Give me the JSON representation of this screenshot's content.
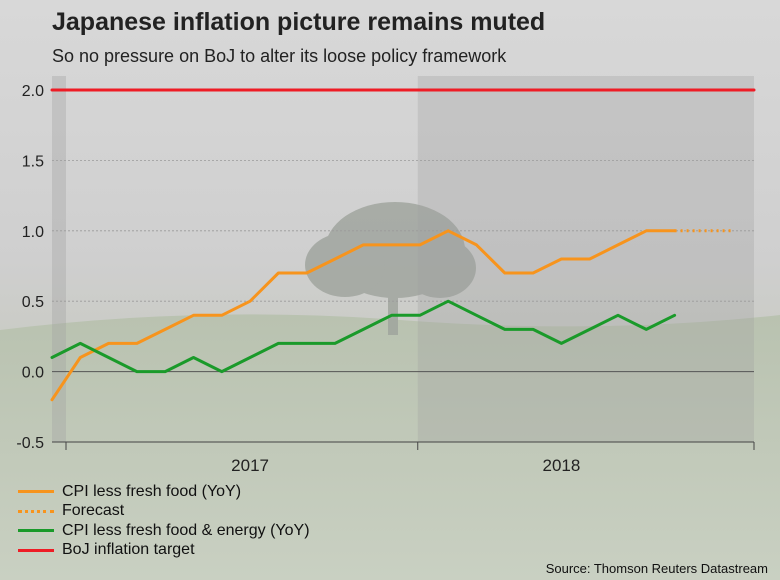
{
  "title": "Japanese inflation picture remains muted",
  "subtitle": "So no pressure on BoJ to alter its loose policy framework",
  "source": "Source: Thomson Reuters Datastream",
  "colors": {
    "core": "#f7941d",
    "corecore": "#1a9a2a",
    "target": "#ee1c25"
  },
  "legend": [
    {
      "label": "CPI less fresh food (YoY)",
      "style": "solid",
      "color": "#f7941d"
    },
    {
      "label": "Forecast",
      "style": "dotted",
      "color": "#f7941d"
    },
    {
      "label": "CPI less fresh food & energy (YoY)",
      "style": "solid",
      "color": "#1a9a2a"
    },
    {
      "label": "BoJ inflation target",
      "style": "solid",
      "color": "#ee1c25"
    }
  ],
  "chart_data": {
    "type": "line",
    "x": [
      "2016-12",
      "2017-01",
      "2017-02",
      "2017-03",
      "2017-04",
      "2017-05",
      "2017-06",
      "2017-07",
      "2017-08",
      "2017-09",
      "2017-10",
      "2017-11",
      "2017-12",
      "2018-01",
      "2018-02",
      "2018-03",
      "2018-04",
      "2018-05",
      "2018-06",
      "2018-07",
      "2018-08",
      "2018-09",
      "2018-10",
      "2018-11",
      "2018-12"
    ],
    "xticks": [
      {
        "label": "2017",
        "x": "2017-07"
      },
      {
        "label": "2018",
        "x": "2018-06"
      }
    ],
    "ylim": [
      -0.5,
      2.0
    ],
    "yticks": [
      "-0.5",
      "0.0",
      "0.5",
      "1.0",
      "1.5",
      "2.0"
    ],
    "series": [
      {
        "name": "CPI less fresh food (YoY)",
        "values": [
          -0.2,
          0.1,
          0.2,
          0.2,
          0.3,
          0.4,
          0.4,
          0.5,
          0.7,
          0.7,
          0.8,
          0.9,
          0.9,
          0.9,
          1.0,
          0.9,
          0.7,
          0.7,
          0.8,
          0.8,
          0.9,
          1.0,
          1.0,
          null,
          null
        ]
      },
      {
        "name": "Forecast",
        "values": [
          null,
          null,
          null,
          null,
          null,
          null,
          null,
          null,
          null,
          null,
          null,
          null,
          null,
          null,
          null,
          null,
          null,
          null,
          null,
          null,
          null,
          null,
          1.0,
          1.0,
          1.0
        ]
      },
      {
        "name": "CPI less fresh food & energy (YoY)",
        "values": [
          0.1,
          0.2,
          0.1,
          0.0,
          0.0,
          0.1,
          0.0,
          0.1,
          0.2,
          0.2,
          0.2,
          0.3,
          0.4,
          0.4,
          0.5,
          0.4,
          0.3,
          0.3,
          0.2,
          0.3,
          0.4,
          0.3,
          0.4,
          null,
          null
        ]
      },
      {
        "name": "BoJ inflation target",
        "values": [
          2.0,
          2.0,
          2.0,
          2.0,
          2.0,
          2.0,
          2.0,
          2.0,
          2.0,
          2.0,
          2.0,
          2.0,
          2.0,
          2.0,
          2.0,
          2.0,
          2.0,
          2.0,
          2.0,
          2.0,
          2.0,
          2.0,
          2.0,
          2.0,
          2.0
        ]
      }
    ],
    "grid": true,
    "legend_position": "bottom-left"
  }
}
